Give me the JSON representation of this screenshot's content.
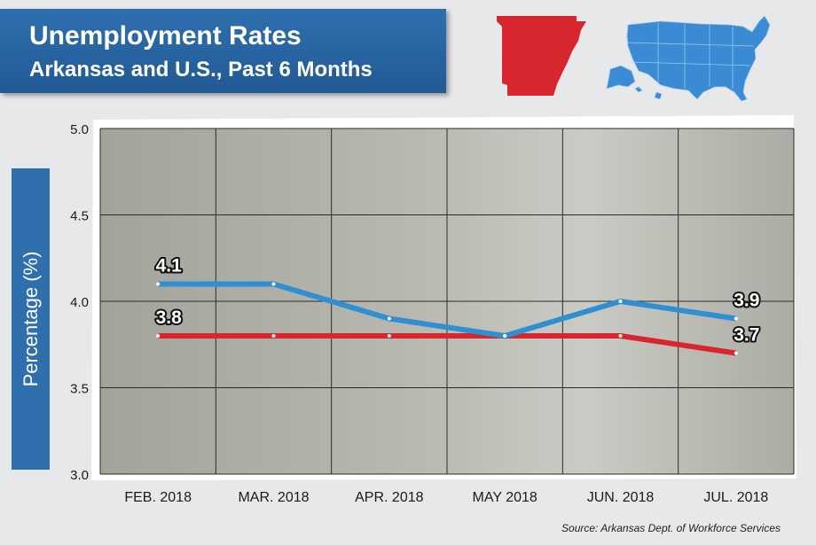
{
  "header": {
    "title": "Unemployment Rates",
    "subtitle": "Arkansas and U.S., Past 6 Months"
  },
  "source": "Source: Arkansas Dept. of Workforce Services",
  "colors": {
    "title_panel": "#2f6fae",
    "us_series": "#2f8fd0",
    "arkansas_series": "#d7262e",
    "arkansas_map": "#d7262e",
    "us_map": "#3a8bd3"
  },
  "icons": [
    "arkansas-map-icon",
    "us-map-icon"
  ],
  "chart_data": {
    "type": "line",
    "title": "Unemployment Rates",
    "subtitle": "Arkansas and U.S., Past 6 Months",
    "xlabel": "",
    "ylabel": "Percentage (%)",
    "categories": [
      "FEB. 2018",
      "MAR. 2018",
      "APR. 2018",
      "MAY 2018",
      "JUN. 2018",
      "JUL. 2018"
    ],
    "ylim": [
      3.0,
      5.0
    ],
    "yticks": [
      "3.0",
      "3.5",
      "4.0",
      "4.5",
      "5.0"
    ],
    "grid": true,
    "legend": "none",
    "series": [
      {
        "color": "#2f8fd0",
        "values": [
          4.1,
          4.1,
          3.9,
          3.8,
          4.0,
          3.9
        ]
      },
      {
        "color": "#d7262e",
        "values": [
          3.8,
          3.8,
          3.8,
          3.8,
          3.8,
          3.7
        ]
      }
    ],
    "annotations": [
      {
        "series": 0,
        "index": 0,
        "text": "4.1"
      },
      {
        "series": 1,
        "index": 0,
        "text": "3.8"
      },
      {
        "series": 0,
        "index": 5,
        "text": "3.9"
      },
      {
        "series": 1,
        "index": 5,
        "text": "3.7"
      }
    ]
  }
}
